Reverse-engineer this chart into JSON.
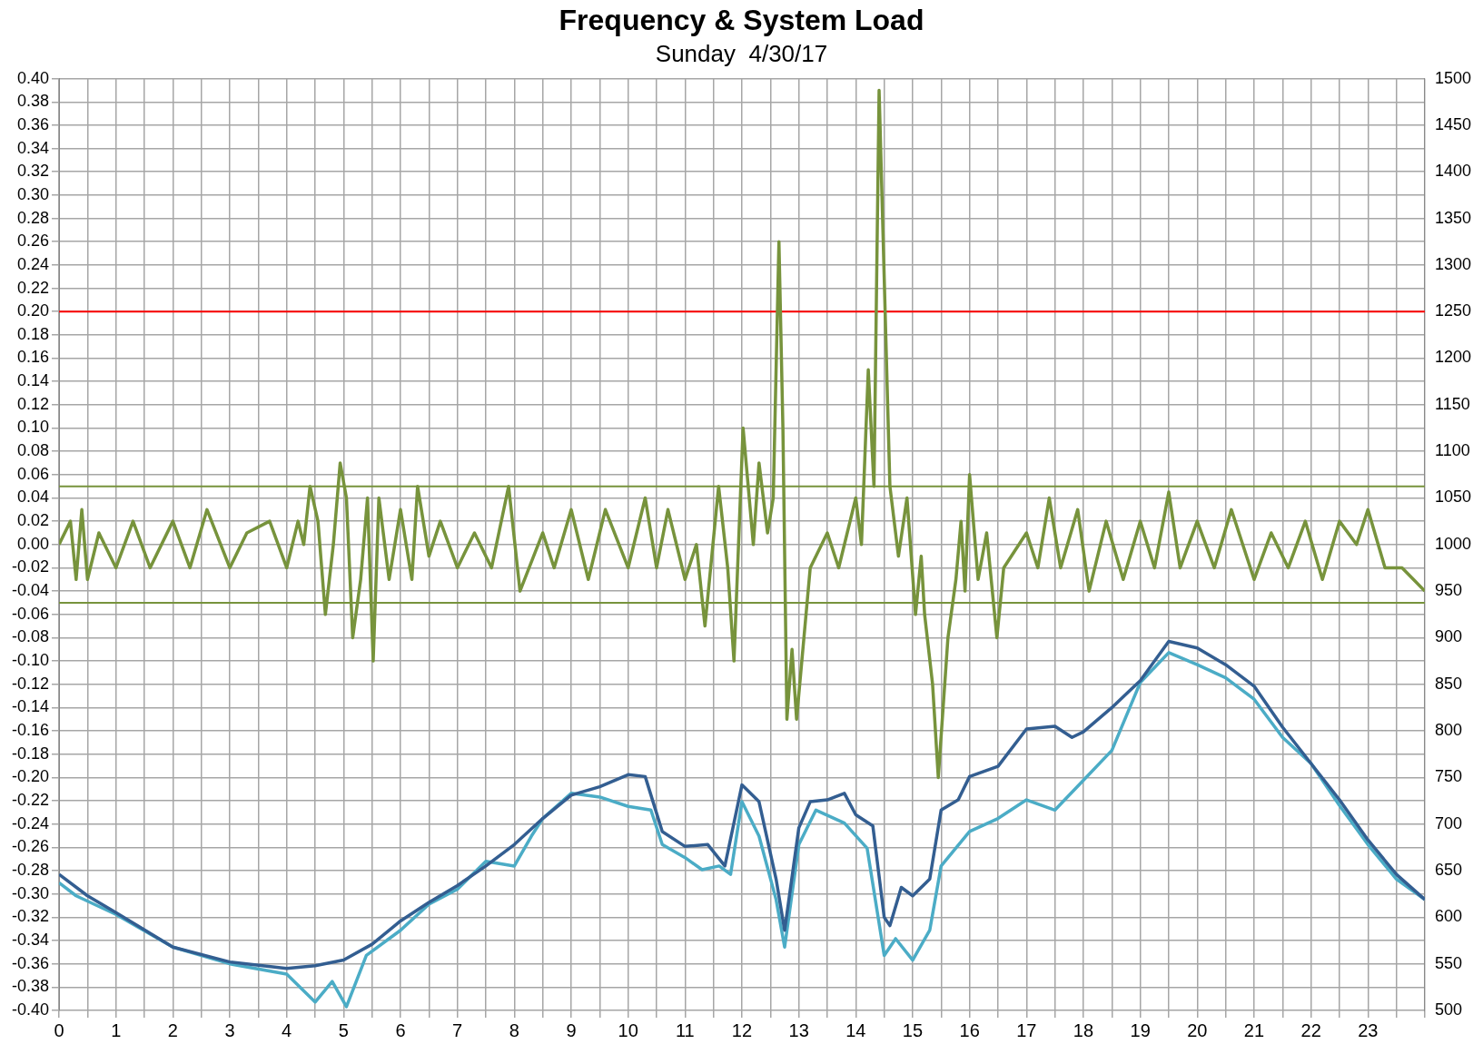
{
  "chart_data": {
    "type": "line",
    "title": "Frequency & System Load",
    "subtitle": "Sunday  4/30/17",
    "xlim": [
      0,
      24
    ],
    "xticks": [
      0,
      {
        "value": 0.5,
        "label": null
      },
      1,
      {
        "value": 1.5,
        "label": null
      },
      2,
      {
        "value": 2.5,
        "label": null
      },
      3,
      {
        "value": 3.5,
        "label": null
      },
      4,
      {
        "value": 4.5,
        "label": null
      },
      5,
      {
        "value": 5.5,
        "label": null
      },
      6,
      {
        "value": 6.5,
        "label": null
      },
      7,
      {
        "value": 7.5,
        "label": null
      },
      8,
      {
        "value": 8.5,
        "label": null
      },
      9,
      {
        "value": 9.5,
        "label": null
      },
      10,
      {
        "value": 10.5,
        "label": null
      },
      11,
      {
        "value": 11.5,
        "label": null
      },
      12,
      {
        "value": 12.5,
        "label": null
      },
      13,
      {
        "value": 13.5,
        "label": null
      },
      14,
      {
        "value": 14.5,
        "label": null
      },
      15,
      {
        "value": 15.5,
        "label": null
      },
      16,
      {
        "value": 16.5,
        "label": null
      },
      17,
      {
        "value": 17.5,
        "label": null
      },
      18,
      {
        "value": 18.5,
        "label": null
      },
      19,
      {
        "value": 19.5,
        "label": null
      },
      20,
      {
        "value": 20.5,
        "label": null
      },
      21,
      {
        "value": 21.5,
        "label": null
      },
      22,
      {
        "value": 22.5,
        "label": null
      },
      23,
      {
        "value": 23.5,
        "label": null
      },
      {
        "value": 24,
        "label": null
      }
    ],
    "ylim": [
      -0.4,
      0.4
    ],
    "yticks": [
      {
        "value": -0.4,
        "label": "-0.40"
      },
      {
        "value": -0.38,
        "label": "-0.38"
      },
      {
        "value": -0.36,
        "label": "-0.36"
      },
      {
        "value": -0.34,
        "label": "-0.34"
      },
      {
        "value": -0.32,
        "label": "-0.32"
      },
      {
        "value": -0.3,
        "label": "-0.30"
      },
      {
        "value": -0.28,
        "label": "-0.28"
      },
      {
        "value": -0.26,
        "label": "-0.26"
      },
      {
        "value": -0.24,
        "label": "-0.24"
      },
      {
        "value": -0.22,
        "label": "-0.22"
      },
      {
        "value": -0.2,
        "label": "-0.20"
      },
      {
        "value": -0.18,
        "label": "-0.18"
      },
      {
        "value": -0.16,
        "label": "-0.16"
      },
      {
        "value": -0.14,
        "label": "-0.14"
      },
      {
        "value": -0.12,
        "label": "-0.12"
      },
      {
        "value": -0.1,
        "label": "-0.10"
      },
      {
        "value": -0.08,
        "label": "-0.08"
      },
      {
        "value": -0.06,
        "label": "-0.06"
      },
      {
        "value": -0.04,
        "label": "-0.04"
      },
      {
        "value": -0.02,
        "label": "-0.02"
      },
      {
        "value": 0,
        "label": "0.00"
      },
      {
        "value": 0.02,
        "label": "0.02"
      },
      {
        "value": 0.04,
        "label": "0.04"
      },
      {
        "value": 0.06,
        "label": "0.06"
      },
      {
        "value": 0.08,
        "label": "0.08"
      },
      {
        "value": 0.1,
        "label": "0.10"
      },
      {
        "value": 0.12,
        "label": "0.12"
      },
      {
        "value": 0.14,
        "label": "0.14"
      },
      {
        "value": 0.16,
        "label": "0.16"
      },
      {
        "value": 0.18,
        "label": "0.18"
      },
      {
        "value": 0.2,
        "label": "0.20"
      },
      {
        "value": 0.22,
        "label": "0.22"
      },
      {
        "value": 0.24,
        "label": "0.24"
      },
      {
        "value": 0.26,
        "label": "0.26"
      },
      {
        "value": 0.28,
        "label": "0.28"
      },
      {
        "value": 0.3,
        "label": "0.30"
      },
      {
        "value": 0.32,
        "label": "0.32"
      },
      {
        "value": 0.34,
        "label": "0.34"
      },
      {
        "value": 0.36,
        "label": "0.36"
      },
      {
        "value": 0.38,
        "label": "0.38"
      },
      {
        "value": 0.4,
        "label": "0.40"
      }
    ],
    "y2lim": [
      500,
      1500
    ],
    "y2ticks": [
      500,
      550,
      600,
      650,
      700,
      750,
      800,
      850,
      900,
      950,
      1000,
      1050,
      1100,
      1150,
      1200,
      1250,
      1300,
      1350,
      1400,
      1450,
      1500
    ],
    "grid": true,
    "legend": false,
    "marker": "none",
    "line_style": "solid",
    "ref_lines": [
      {
        "axis": "y",
        "value": 0.2,
        "color": "#ff0000"
      },
      {
        "axis": "y",
        "value": 0.05,
        "color": "#77933c"
      },
      {
        "axis": "y",
        "value": -0.05,
        "color": "#77933c"
      }
    ],
    "series": [
      {
        "color": "#77933c",
        "x": [
          0,
          0.2,
          0.3,
          0.4,
          0.5,
          0.7,
          1,
          1.3,
          1.6,
          2,
          2.3,
          2.6,
          3,
          3.3,
          3.7,
          4,
          4.2,
          4.3,
          4.41,
          4.55,
          4.68,
          4.82,
          4.94,
          5.05,
          5.16,
          5.3,
          5.42,
          5.52,
          5.62,
          5.8,
          6,
          6.2,
          6.3,
          6.5,
          6.7,
          7,
          7.3,
          7.6,
          7.9,
          8.1,
          8.5,
          8.7,
          9,
          9.3,
          9.6,
          10,
          10.3,
          10.5,
          10.7,
          11,
          11.2,
          11.35,
          11.59,
          11.75,
          11.86,
          12.02,
          12.2,
          12.3,
          12.45,
          12.55,
          12.65,
          12.72,
          12.79,
          12.88,
          12.96,
          13.2,
          13.5,
          13.7,
          14,
          14.1,
          14.22,
          14.32,
          14.41,
          14.6,
          14.75,
          14.9,
          15.05,
          15.15,
          15.21,
          15.35,
          15.45,
          15.62,
          15.76,
          15.85,
          15.92,
          16,
          16.15,
          16.3,
          16.48,
          16.6,
          17,
          17.2,
          17.4,
          17.6,
          17.9,
          18.1,
          18.4,
          18.7,
          19,
          19.25,
          19.5,
          19.7,
          20,
          20.3,
          20.6,
          21,
          21.3,
          21.6,
          21.9,
          22.2,
          22.5,
          22.8,
          23,
          23.3,
          23.6,
          23.8,
          24
        ],
        "values": [
          0,
          0.02,
          -0.03,
          0.03,
          -0.03,
          0.01,
          -0.02,
          0.02,
          -0.02,
          0.02,
          -0.02,
          0.03,
          -0.02,
          0.01,
          0.02,
          -0.02,
          0.02,
          0,
          0.05,
          0.02,
          -0.06,
          0,
          0.07,
          0.04,
          -0.08,
          -0.03,
          0.04,
          -0.1,
          0.04,
          -0.03,
          0.03,
          -0.03,
          0.05,
          -0.01,
          0.02,
          -0.02,
          0.01,
          -0.02,
          0.05,
          -0.04,
          0.01,
          -0.02,
          0.03,
          -0.03,
          0.03,
          -0.02,
          0.04,
          -0.02,
          0.03,
          -0.03,
          0,
          -0.07,
          0.05,
          -0.02,
          -0.1,
          0.1,
          0,
          0.07,
          0.01,
          0.04,
          0.26,
          0.1,
          -0.15,
          -0.09,
          -0.15,
          -0.02,
          0.01,
          -0.02,
          0.04,
          0,
          0.15,
          0.05,
          0.39,
          0.05,
          -0.01,
          0.04,
          -0.06,
          -0.01,
          -0.06,
          -0.12,
          -0.2,
          -0.08,
          -0.03,
          0.02,
          -0.04,
          0.06,
          -0.03,
          0.01,
          -0.08,
          -0.02,
          0.01,
          -0.02,
          0.04,
          -0.02,
          0.03,
          -0.04,
          0.02,
          -0.03,
          0.02,
          -0.02,
          0.045,
          -0.02,
          0.02,
          -0.02,
          0.03,
          -0.03,
          0.01,
          -0.02,
          0.02,
          -0.03,
          0.02,
          0,
          0.03,
          -0.02,
          -0.02,
          -0.03,
          -0.04
        ]
      },
      {
        "color": "#335e91",
        "axis": "y2",
        "x": [
          0,
          0.5,
          1,
          2,
          3,
          4,
          4.5,
          5,
          5.5,
          6,
          6.5,
          7,
          7.5,
          8,
          8.5,
          9,
          9.5,
          10,
          10.3,
          10.6,
          11,
          11.4,
          11.7,
          12,
          12.3,
          12.6,
          12.75,
          13,
          13.2,
          13.5,
          13.8,
          14,
          14.3,
          14.5,
          14.6,
          14.8,
          15,
          15.3,
          15.5,
          15.8,
          16,
          16.5,
          17,
          17.5,
          17.8,
          18,
          18.5,
          19,
          19.5,
          20,
          20.5,
          21,
          21.5,
          22,
          22.5,
          23,
          23.5,
          24
        ],
        "values": [
          646,
          623,
          605,
          568,
          552,
          545,
          548,
          554,
          571,
          596,
          616,
          634,
          655,
          678,
          706,
          731,
          740,
          753,
          751,
          692,
          676,
          678,
          655,
          742,
          724,
          641,
          586,
          696,
          724,
          726,
          733,
          710,
          698,
          600,
          591,
          632,
          623,
          641,
          715,
          726,
          751,
          762,
          802,
          805,
          793,
          799,
          825,
          854,
          896,
          889,
          871,
          848,
          804,
          765,
          726,
          683,
          646,
          619
        ]
      },
      {
        "color": "#4bacc6",
        "axis": "y2",
        "x": [
          0,
          0.3,
          1,
          2,
          3,
          4,
          4.5,
          4.8,
          5.05,
          5.4,
          6,
          6.5,
          7,
          7.5,
          8,
          8.3,
          8.5,
          9,
          9.5,
          10,
          10.4,
          10.6,
          11,
          11.3,
          11.6,
          11.8,
          12,
          12.3,
          12.6,
          12.75,
          13,
          13.3,
          13.8,
          14.2,
          14.5,
          14.7,
          15,
          15.3,
          15.5,
          16,
          16.5,
          17,
          17.5,
          18,
          18.5,
          19,
          19.5,
          20,
          20.5,
          21,
          21.5,
          22,
          22.5,
          23,
          23.5,
          24
        ],
        "values": [
          637,
          623,
          603,
          568,
          550,
          539,
          509,
          531,
          504,
          559,
          586,
          614,
          630,
          660,
          655,
          687,
          706,
          733,
          729,
          719,
          715,
          678,
          664,
          651,
          655,
          646,
          724,
          687,
          619,
          568,
          678,
          715,
          701,
          674,
          559,
          577,
          554,
          586,
          655,
          692,
          706,
          726,
          715,
          747,
          779,
          852,
          884,
          871,
          857,
          834,
          793,
          765,
          720,
          678,
          641,
          619
        ]
      }
    ]
  }
}
